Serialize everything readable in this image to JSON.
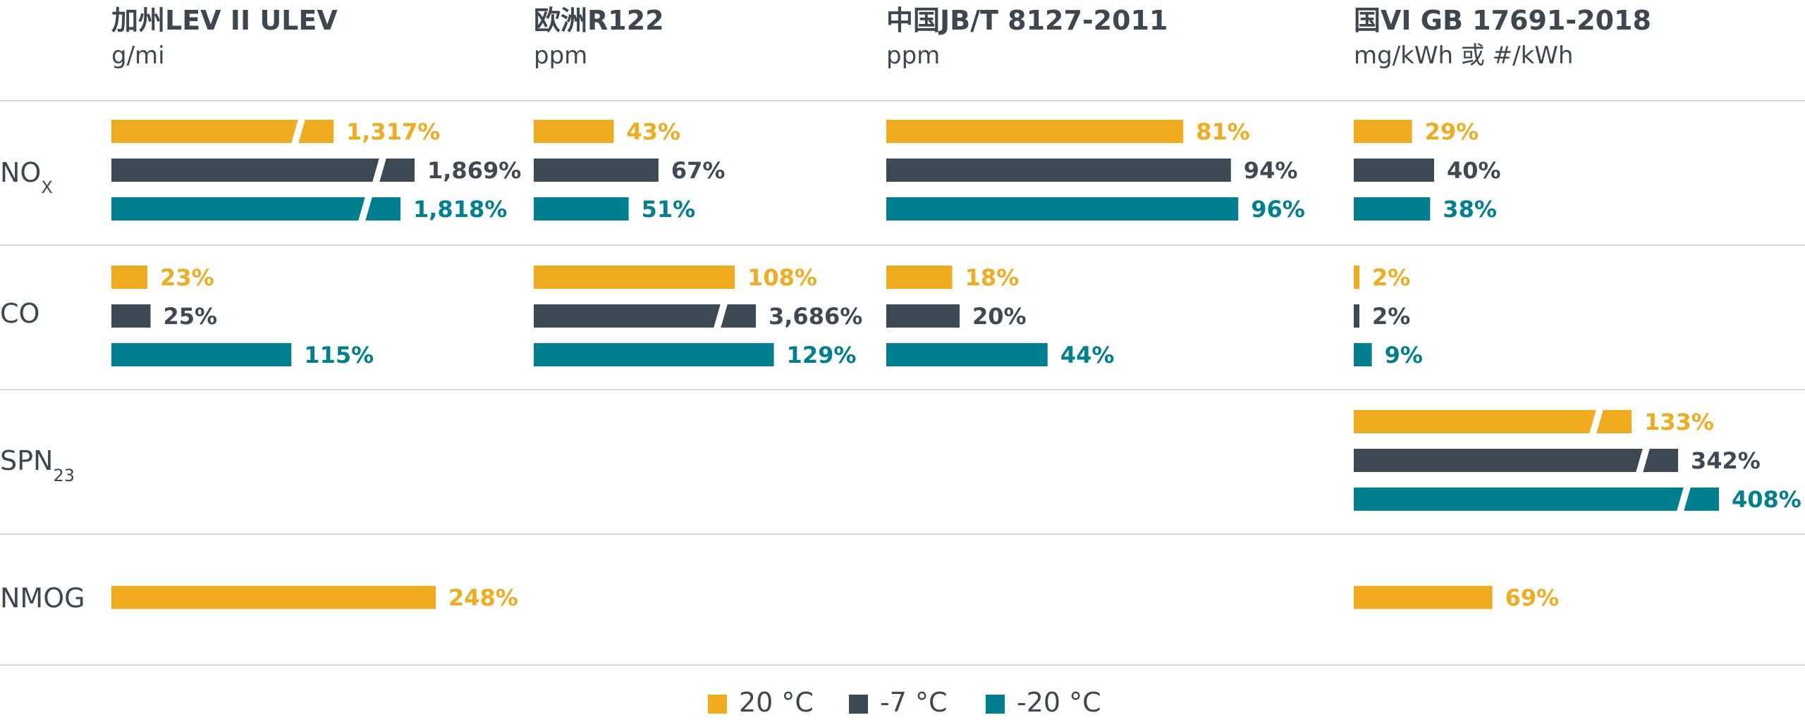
{
  "chart_data": {
    "type": "bar",
    "series": [
      {
        "name": "20 °C",
        "color": "#f0ac1e"
      },
      {
        "name": "-7 °C",
        "color": "#3e4a53"
      },
      {
        "name": "-20 °C",
        "color": "#00808f"
      }
    ],
    "columns": [
      {
        "title": "加州LEV II ULEV",
        "unit": "g/mi"
      },
      {
        "title": "欧洲R122",
        "unit": "ppm"
      },
      {
        "title": "中国JB/T 8127-2011",
        "unit": "ppm"
      },
      {
        "title": "国VI GB 17691-2018",
        "unit": "mg/kWh 或 #/kWh"
      }
    ],
    "rows": [
      {
        "label": "NO",
        "sub": "X"
      },
      {
        "label": "CO",
        "sub": ""
      },
      {
        "label": "SPN",
        "sub": "23"
      },
      {
        "label": "NMOG",
        "sub": ""
      }
    ],
    "cells": [
      [
        [
          {
            "value": 1317,
            "label": "1,317%",
            "broken": true
          },
          {
            "value": 1869,
            "label": "1,869%",
            "broken": true
          },
          {
            "value": 1818,
            "label": "1,818%",
            "broken": true
          }
        ],
        [
          {
            "value": 43,
            "label": "43%"
          },
          {
            "value": 67,
            "label": "67%"
          },
          {
            "value": 51,
            "label": "51%"
          }
        ],
        [
          {
            "value": 81,
            "label": "81%"
          },
          {
            "value": 94,
            "label": "94%"
          },
          {
            "value": 96,
            "label": "96%"
          }
        ],
        [
          {
            "value": 29,
            "label": "29%"
          },
          {
            "value": 40,
            "label": "40%"
          },
          {
            "value": 38,
            "label": "38%"
          }
        ]
      ],
      [
        [
          {
            "value": 23,
            "label": "23%"
          },
          {
            "value": 25,
            "label": "25%"
          },
          {
            "value": 115,
            "label": "115%"
          }
        ],
        [
          {
            "value": 108,
            "label": "108%"
          },
          {
            "value": 3686,
            "label": "3,686%",
            "broken": true
          },
          {
            "value": 129,
            "label": "129%"
          }
        ],
        [
          {
            "value": 18,
            "label": "18%"
          },
          {
            "value": 20,
            "label": "20%"
          },
          {
            "value": 44,
            "label": "44%"
          }
        ],
        [
          {
            "value": 2,
            "label": "2%"
          },
          {
            "value": 2,
            "label": "2%"
          },
          {
            "value": 9,
            "label": "9%"
          }
        ]
      ],
      [
        [],
        [],
        [],
        [
          {
            "value": 133,
            "label": "133%",
            "broken": true
          },
          {
            "value": 342,
            "label": "342%",
            "broken": true
          },
          {
            "value": 408,
            "label": "408%",
            "broken": true
          }
        ]
      ],
      [
        [
          {
            "value": 248,
            "label": "248%"
          }
        ],
        [],
        [],
        [
          {
            "value": 69,
            "label": "69%"
          }
        ]
      ]
    ]
  }
}
